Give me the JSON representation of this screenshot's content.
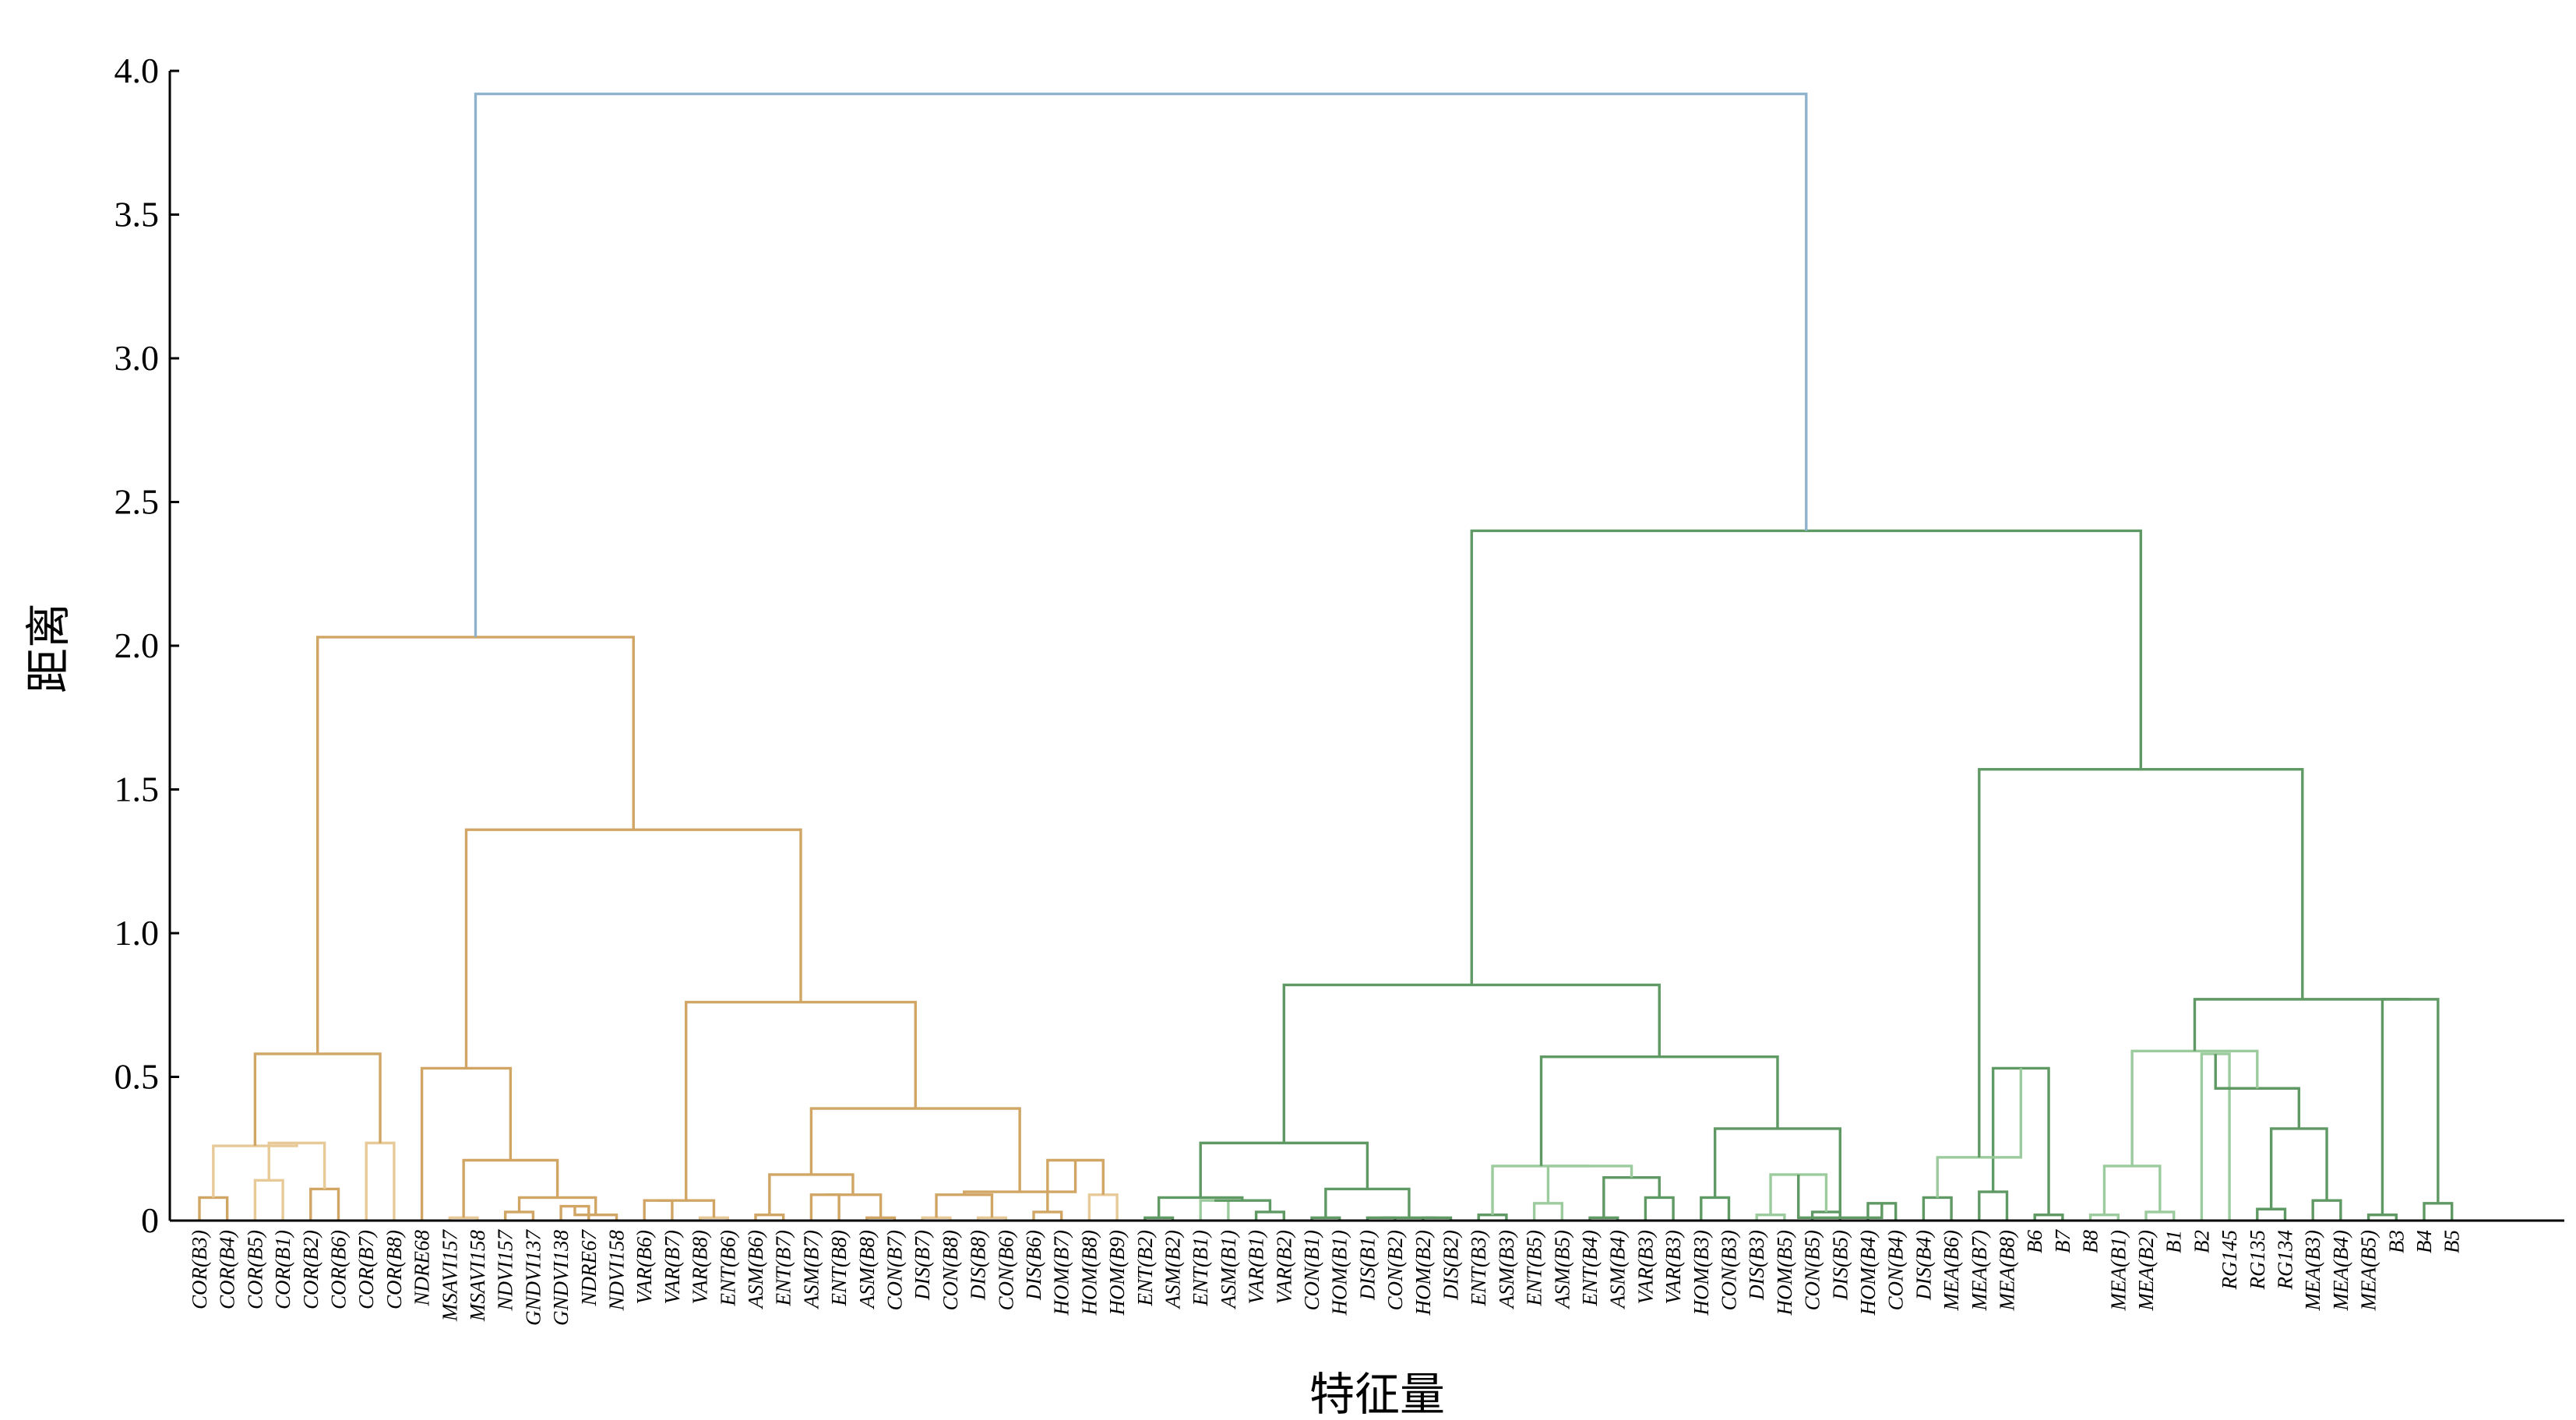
{
  "chart_data": {
    "type": "dendrogram",
    "xlabel": "特征量",
    "ylabel": "距离",
    "ylim": [
      0,
      4.0
    ],
    "yticks": [
      0,
      0.5,
      1.0,
      1.5,
      2.0,
      2.5,
      3.0,
      3.5,
      4.0
    ],
    "ytick_labels": [
      "0",
      "0.5",
      "1.0",
      "1.5",
      "2.0",
      "2.5",
      "3.0",
      "3.5",
      "4.0"
    ],
    "grid": false,
    "colors": {
      "root": "#8fb3cc",
      "cluster_orange": "#d1a564",
      "cluster_orange_light": "#e8c998",
      "cluster_green": "#5f9963",
      "cluster_green_light": "#9ccb9e"
    },
    "leaves": [
      "COR(B3)",
      "COR(B4)",
      "COR(B5)",
      "COR(B1)",
      "COR(B2)",
      "COR(B6)",
      "COR(B7)",
      "COR(B8)",
      "NDRE68",
      "MSAVI157",
      "MSAVI158",
      "NDVI157",
      "GNDVI137",
      "GNDVI138",
      "NDRE67",
      "NDVI158",
      "VAR(B6)",
      "VAR(B7)",
      "VAR(B8)",
      "ENT(B6)",
      "ASM(B6)",
      "ENT(B7)",
      "ASM(B7)",
      "ENT(B8)",
      "ASM(B8)",
      "CON(B7)",
      "DIS(B7)",
      "CON(B8)",
      "DIS(B8)",
      "CON(B6)",
      "DIS(B6)",
      "HOM(B7)",
      "HOM(B8)",
      "HOM(B9)",
      "ENT(B2)",
      "ASM(B2)",
      "ENT(B1)",
      "ASM(B1)",
      "VAR(B1)",
      "VAR(B2)",
      "CON(B1)",
      "HOM(B1)",
      "DIS(B1)",
      "CON(B2)",
      "HOM(B2)",
      "DIS(B2)",
      "ENT(B3)",
      "ASM(B3)",
      "ENT(B5)",
      "ASM(B5)",
      "ENT(B4)",
      "ASM(B4)",
      "VAR(B3)",
      "VAR(B3)",
      "HOM(B3)",
      "CON(B3)",
      "DIS(B3)",
      "HOM(B5)",
      "CON(B5)",
      "DIS(B5)",
      "HOM(B4)",
      "CON(B4)",
      "DIS(B4)",
      "MEA(B6)",
      "MEA(B7)",
      "MEA(B8)",
      "B6",
      "B7",
      "B8",
      "MEA(B1)",
      "MEA(B2)",
      "B1",
      "B2",
      "RG145",
      "RG135",
      "RG134",
      "MEA(B3)",
      "MEA(B4)",
      "MEA(B5)",
      "B3",
      "B4",
      "B5"
    ],
    "merges": [
      {
        "a": "L0",
        "b": "L1",
        "h": 0.08,
        "c": "cluster_orange"
      },
      {
        "a": "L2",
        "b": "L3",
        "h": 0.14,
        "c": "cluster_orange_light"
      },
      {
        "a": "L4",
        "b": "L5",
        "h": 0.11,
        "c": "cluster_orange"
      },
      {
        "a": "M1",
        "b": "M2",
        "h": 0.27,
        "c": "cluster_orange_light"
      },
      {
        "a": "M0",
        "b": "M3",
        "h": 0.26,
        "c": "cluster_orange_light"
      },
      {
        "a": "L6",
        "b": "L7",
        "h": 0.27,
        "c": "cluster_orange_light"
      },
      {
        "a": "M4",
        "b": "M5",
        "h": 0.58,
        "c": "cluster_orange"
      },
      {
        "a": "L9",
        "b": "L10",
        "h": 0.01,
        "c": "cluster_orange_light"
      },
      {
        "a": "L11",
        "b": "L12",
        "h": 0.03,
        "c": "cluster_orange"
      },
      {
        "a": "L13",
        "b": "L14",
        "h": 0.05,
        "c": "cluster_orange"
      },
      {
        "a": "M9",
        "b": "L15",
        "h": 0.02,
        "c": "cluster_orange"
      },
      {
        "a": "M8",
        "b": "M10",
        "h": 0.08,
        "c": "cluster_orange"
      },
      {
        "a": "M7",
        "b": "M11",
        "h": 0.21,
        "c": "cluster_orange"
      },
      {
        "a": "L8",
        "b": "M12",
        "h": 0.53,
        "c": "cluster_orange"
      },
      {
        "a": "L16",
        "b": "L17",
        "h": 0.07,
        "c": "cluster_orange"
      },
      {
        "a": "L18",
        "b": "L19",
        "h": 0.01,
        "c": "cluster_orange_light"
      },
      {
        "a": "M14",
        "b": "M15",
        "h": 0.07,
        "c": "cluster_orange"
      },
      {
        "a": "L20",
        "b": "L21",
        "h": 0.02,
        "c": "cluster_orange"
      },
      {
        "a": "L22",
        "b": "L23",
        "h": 0.09,
        "c": "cluster_orange"
      },
      {
        "a": "L24",
        "b": "L25",
        "h": 0.01,
        "c": "cluster_orange"
      },
      {
        "a": "M18",
        "b": "M19",
        "h": 0.09,
        "c": "cluster_orange"
      },
      {
        "a": "M17",
        "b": "M20",
        "h": 0.16,
        "c": "cluster_orange"
      },
      {
        "a": "L26",
        "b": "L27",
        "h": 0.01,
        "c": "cluster_orange_light"
      },
      {
        "a": "L28",
        "b": "L29",
        "h": 0.01,
        "c": "cluster_orange_light"
      },
      {
        "a": "M22",
        "b": "M23",
        "h": 0.09,
        "c": "cluster_orange"
      },
      {
        "a": "L30",
        "b": "L31",
        "h": 0.03,
        "c": "cluster_orange"
      },
      {
        "a": "L32",
        "b": "L33",
        "h": 0.09,
        "c": "cluster_orange_light"
      },
      {
        "a": "M25",
        "b": "M26",
        "h": 0.21,
        "c": "cluster_orange"
      },
      {
        "a": "M24",
        "b": "M27",
        "h": 0.1,
        "c": "cluster_orange"
      },
      {
        "a": "M21",
        "b": "M28",
        "h": 0.39,
        "c": "cluster_orange"
      },
      {
        "a": "M16",
        "b": "M29",
        "h": 0.76,
        "c": "cluster_orange"
      },
      {
        "a": "M13",
        "b": "M30",
        "h": 1.36,
        "c": "cluster_orange"
      },
      {
        "a": "M6",
        "b": "M31",
        "h": 2.03,
        "c": "cluster_orange"
      },
      {
        "a": "L34",
        "b": "L35",
        "h": 0.01,
        "c": "cluster_green"
      },
      {
        "a": "L36",
        "b": "L37",
        "h": 0.07,
        "c": "cluster_green_light"
      },
      {
        "a": "L38",
        "b": "L39",
        "h": 0.03,
        "c": "cluster_green"
      },
      {
        "a": "M34",
        "b": "M35",
        "h": 0.07,
        "c": "cluster_green"
      },
      {
        "a": "M33",
        "b": "M36",
        "h": 0.08,
        "c": "cluster_green"
      },
      {
        "a": "L40",
        "b": "L41",
        "h": 0.01,
        "c": "cluster_green"
      },
      {
        "a": "L42",
        "b": "L43",
        "h": 0.01,
        "c": "cluster_green"
      },
      {
        "a": "L44",
        "b": "L45",
        "h": 0.01,
        "c": "cluster_green"
      },
      {
        "a": "M39",
        "b": "M40",
        "h": 0.01,
        "c": "cluster_green"
      },
      {
        "a": "M38",
        "b": "M41",
        "h": 0.11,
        "c": "cluster_green"
      },
      {
        "a": "M37",
        "b": "M42",
        "h": 0.27,
        "c": "cluster_green"
      },
      {
        "a": "L46",
        "b": "L47",
        "h": 0.02,
        "c": "cluster_green"
      },
      {
        "a": "L48",
        "b": "L49",
        "h": 0.06,
        "c": "cluster_green_light"
      },
      {
        "a": "L50",
        "b": "L51",
        "h": 0.01,
        "c": "cluster_green"
      },
      {
        "a": "L52",
        "b": "L53",
        "h": 0.08,
        "c": "cluster_green"
      },
      {
        "a": "M46",
        "b": "M47",
        "h": 0.15,
        "c": "cluster_green"
      },
      {
        "a": "M45",
        "b": "M48",
        "h": 0.19,
        "c": "cluster_green_light"
      },
      {
        "a": "M44",
        "b": "M49",
        "h": 0.19,
        "c": "cluster_green_light"
      },
      {
        "a": "L54",
        "b": "L55",
        "h": 0.08,
        "c": "cluster_green"
      },
      {
        "a": "L56",
        "b": "L57",
        "h": 0.02,
        "c": "cluster_green_light"
      },
      {
        "a": "L58",
        "b": "L59",
        "h": 0.03,
        "c": "cluster_green"
      },
      {
        "a": "M52",
        "b": "M53",
        "h": 0.16,
        "c": "cluster_green_light"
      },
      {
        "a": "L60",
        "b": "L61",
        "h": 0.06,
        "c": "cluster_green"
      },
      {
        "a": "M54",
        "b": "M55",
        "h": 0.01,
        "c": "cluster_green"
      },
      {
        "a": "M51",
        "b": "M56",
        "h": 0.32,
        "c": "cluster_green"
      },
      {
        "a": "M50",
        "b": "M57",
        "h": 0.57,
        "c": "cluster_green"
      },
      {
        "a": "M43",
        "b": "M58",
        "h": 0.82,
        "c": "cluster_green"
      },
      {
        "a": "L62",
        "b": "L63",
        "h": 0.08,
        "c": "cluster_green"
      },
      {
        "a": "L64",
        "b": "L65",
        "h": 0.1,
        "c": "cluster_green"
      },
      {
        "a": "L66",
        "b": "L67",
        "h": 0.02,
        "c": "cluster_green"
      },
      {
        "a": "M61",
        "b": "M62",
        "h": 0.53,
        "c": "cluster_green"
      },
      {
        "a": "M60",
        "b": "M63",
        "h": 0.22,
        "c": "cluster_green_light"
      },
      {
        "a": "L68",
        "b": "L69",
        "h": 0.02,
        "c": "cluster_green_light"
      },
      {
        "a": "L70",
        "b": "L71",
        "h": 0.03,
        "c": "cluster_green_light"
      },
      {
        "a": "M65",
        "b": "M66",
        "h": 0.19,
        "c": "cluster_green_light"
      },
      {
        "a": "L72",
        "b": "L73",
        "h": 0.58,
        "c": "cluster_green_light"
      },
      {
        "a": "L74",
        "b": "L75",
        "h": 0.04,
        "c": "cluster_green"
      },
      {
        "a": "L76",
        "b": "L77",
        "h": 0.07,
        "c": "cluster_green"
      },
      {
        "a": "M69",
        "b": "M70",
        "h": 0.32,
        "c": "cluster_green"
      },
      {
        "a": "M68",
        "b": "M71",
        "h": 0.46,
        "c": "cluster_green"
      },
      {
        "a": "M67",
        "b": "M72",
        "h": 0.59,
        "c": "cluster_green_light"
      },
      {
        "a": "L78",
        "b": "L79",
        "h": 0.02,
        "c": "cluster_green"
      },
      {
        "a": "L80",
        "b": "L81",
        "h": 0.06,
        "c": "cluster_green"
      },
      {
        "a": "M74",
        "b": "M75",
        "h": 0.77,
        "c": "cluster_green"
      },
      {
        "a": "M73",
        "b": "M76",
        "h": 0.77,
        "c": "cluster_green"
      },
      {
        "a": "M64",
        "b": "M77",
        "h": 1.57,
        "c": "cluster_green"
      },
      {
        "a": "M59",
        "b": "M78",
        "h": 2.4,
        "c": "cluster_green"
      },
      {
        "a": "M32",
        "b": "M79",
        "h": 3.92,
        "c": "root"
      }
    ]
  }
}
